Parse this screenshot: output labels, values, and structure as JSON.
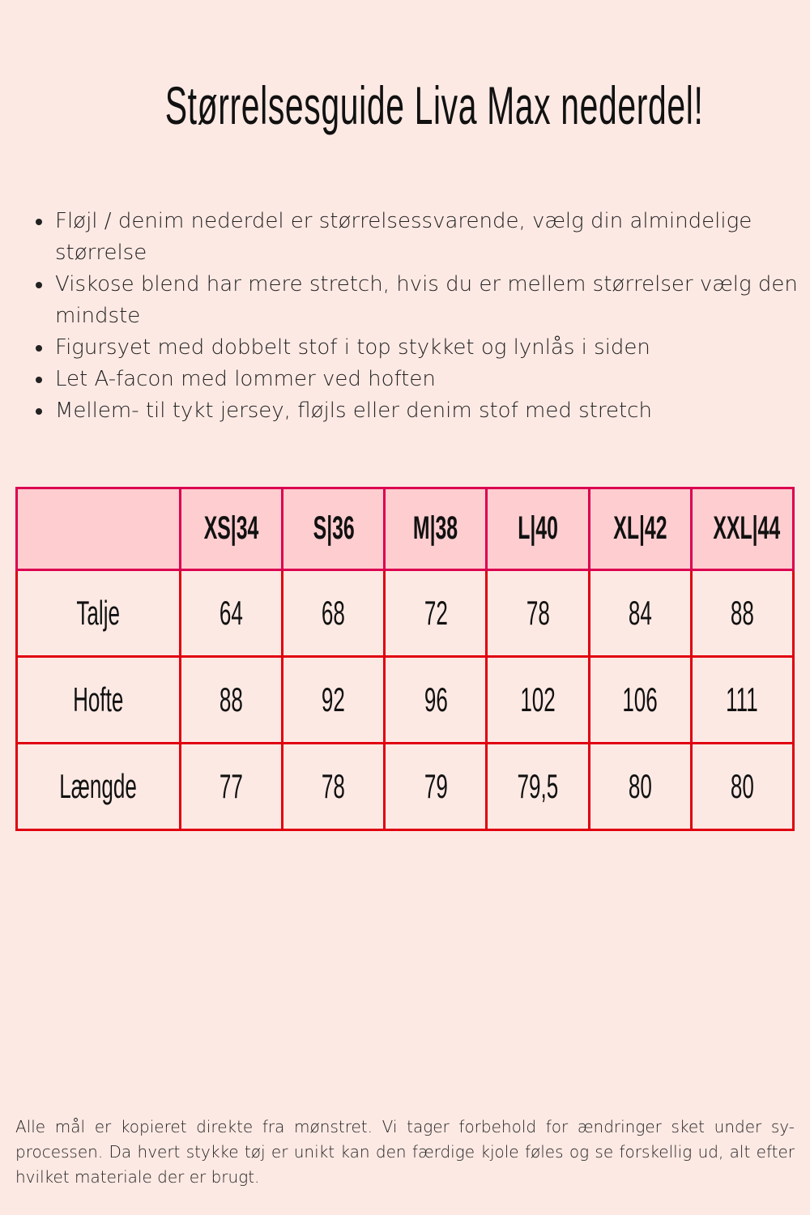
{
  "title": "Størrelsesguide Liva Max nederdel!",
  "bullets": [
    "Fløjl / denim nederdel er størrelsessvarende, vælg din almindelige størrelse",
    "Viskose blend har mere stretch, hvis du er mellem størrelser vælg den mindste",
    "Figursyet med dobbelt stof i top stykket og lynlås i siden",
    "Let A-facon med lommer ved hoften",
    "Mellem- til tykt jersey, fløjls eller denim stof med stretch"
  ],
  "table": {
    "headers": [
      "",
      "XS|34",
      "S|36",
      "M|38",
      "L|40",
      "XL|42",
      "XXL|44"
    ],
    "rows": [
      {
        "label": "Talje",
        "values": [
          "64",
          "68",
          "72",
          "78",
          "84",
          "88"
        ]
      },
      {
        "label": "Hofte",
        "values": [
          "88",
          "92",
          "96",
          "102",
          "106",
          "111"
        ]
      },
      {
        "label": "Længde",
        "values": [
          "77",
          "78",
          "79",
          "79,5",
          "80",
          "80"
        ]
      }
    ]
  },
  "footer": "Alle mål er kopieret direkte fra mønstret. Vi tager forbehold for ændringer sket under sy-processen. Da hvert stykke tøj er unikt kan den færdige kjole føles og se forskellig ud, alt efter hvilket materiale der er brugt.",
  "colors": {
    "background": "#fde9e4",
    "header_fill": "#fecdd0",
    "header_border": "#dc0050",
    "body_border": "#e00010"
  }
}
